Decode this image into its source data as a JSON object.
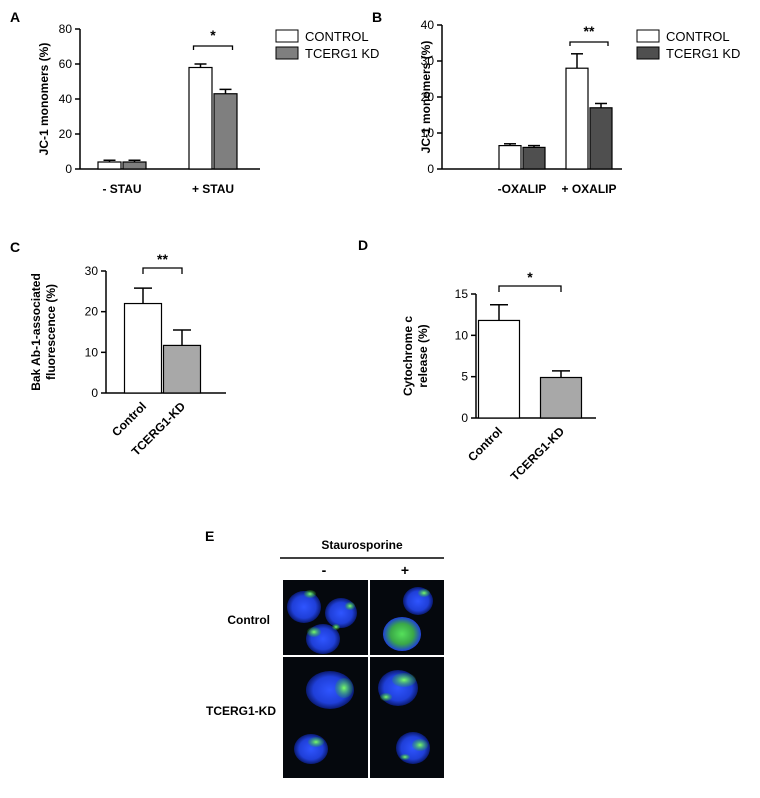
{
  "colors": {
    "control": "#ffffff",
    "kd": "#7f7f7f",
    "kd_dark": "#4f4f4f",
    "cells_blue": "#1f3fd8",
    "cells_green": "#3fd04f"
  },
  "chart_data": [
    {
      "panel": "A",
      "type": "bar",
      "categories": [
        "- STAU",
        "+ STAU"
      ],
      "ylabel": "JC-1 monomers (%)",
      "ylim": [
        0,
        80
      ],
      "yticks": [
        0,
        20,
        40,
        60,
        80
      ],
      "series": [
        {
          "name": "CONTROL",
          "values": [
            4,
            58
          ],
          "errors": [
            1,
            2
          ],
          "color": "#ffffff"
        },
        {
          "name": "TCERG1 KD",
          "values": [
            4,
            43
          ],
          "errors": [
            1,
            2.5
          ],
          "color": "#7f7f7f"
        }
      ],
      "significance": [
        {
          "category": 1,
          "label": "*"
        }
      ],
      "legend": "top-right"
    },
    {
      "panel": "B",
      "type": "bar",
      "categories": [
        "-OXALIP",
        "+ OXALIP"
      ],
      "ylabel": "JC-1 monomers (%)",
      "ylim": [
        0,
        40
      ],
      "yticks": [
        0,
        10,
        20,
        30,
        40
      ],
      "series": [
        {
          "name": "CONTROL",
          "values": [
            6.5,
            28
          ],
          "errors": [
            0.5,
            4
          ],
          "color": "#ffffff"
        },
        {
          "name": "TCERG1 KD",
          "values": [
            6,
            17
          ],
          "errors": [
            0.5,
            1.2
          ],
          "color": "#4f4f4f"
        }
      ],
      "significance": [
        {
          "category": 1,
          "label": "**"
        }
      ],
      "legend": "top-right"
    },
    {
      "panel": "C",
      "type": "bar",
      "categories": [
        "Control",
        "TCERG1-KD"
      ],
      "ylabel_lines": [
        "Bak Ab-1-associated",
        "fluorescence (%)"
      ],
      "ylim": [
        0,
        30
      ],
      "yticks": [
        0,
        10,
        20,
        30
      ],
      "values": [
        22,
        11.7
      ],
      "errors": [
        3.8,
        3.8
      ],
      "colors": [
        "#ffffff",
        "#a8a8a8"
      ],
      "significance": [
        {
          "label": "**"
        }
      ]
    },
    {
      "panel": "D",
      "type": "bar",
      "categories": [
        "Control",
        "TCERG1-KD"
      ],
      "ylabel_lines": [
        "Cytochrome c",
        "release (%)"
      ],
      "ylim": [
        0,
        15
      ],
      "yticks": [
        0,
        5,
        10,
        15
      ],
      "values": [
        11.8,
        4.9
      ],
      "errors": [
        1.9,
        0.8
      ],
      "colors": [
        "#ffffff",
        "#a8a8a8"
      ],
      "significance": [
        {
          "label": "*"
        }
      ]
    }
  ],
  "panel_e": {
    "label": "E",
    "header": "Staurosporine",
    "columns": [
      "-",
      "+"
    ],
    "rows": [
      "Control",
      "TCERG1-KD"
    ]
  }
}
